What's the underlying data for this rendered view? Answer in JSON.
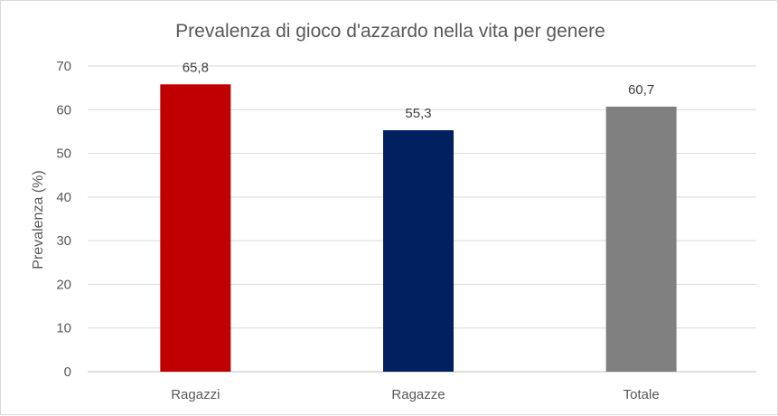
{
  "chart_data": {
    "type": "bar",
    "title": "Prevalenza di gioco d'azzardo nella vita per genere",
    "xlabel": "",
    "ylabel": "Prevalenza (%)",
    "ylim": [
      0,
      70
    ],
    "yticks": [
      0,
      10,
      20,
      30,
      40,
      50,
      60,
      70
    ],
    "grid": true,
    "categories": [
      "Ragazzi",
      "Ragazze",
      "Totale"
    ],
    "values": [
      65.8,
      55.3,
      60.7
    ],
    "data_labels": [
      "65,8",
      "55,3",
      "60,7"
    ],
    "colors": [
      "#c00000",
      "#002060",
      "#808080"
    ],
    "gridline_color": "#d9d9d9",
    "axis_color": "#bfbfbf"
  }
}
